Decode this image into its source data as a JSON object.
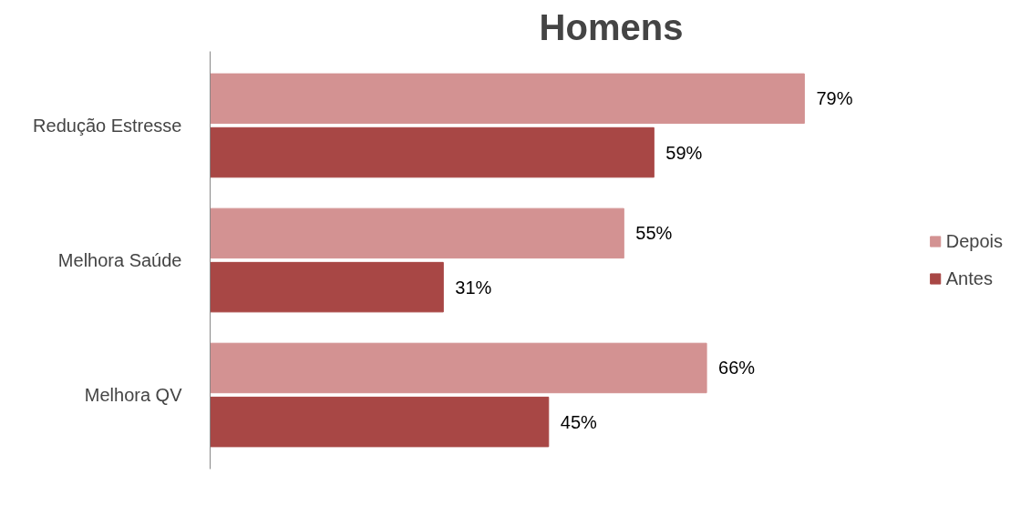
{
  "chart_data": {
    "type": "bar",
    "orientation": "horizontal",
    "title": "Homens",
    "categories": [
      "Redução Estresse",
      "Melhora Saúde",
      "Melhora QV"
    ],
    "series": [
      {
        "name": "Depois",
        "color": "#d39292",
        "values": [
          79,
          55,
          66
        ],
        "value_labels": [
          "79%",
          "55%",
          "66%"
        ]
      },
      {
        "name": "Antes",
        "color": "#a84745",
        "values": [
          59,
          31,
          45
        ],
        "value_labels": [
          "59%",
          "31%",
          "45%"
        ]
      }
    ],
    "legend": "right",
    "grid": false,
    "tick_labels": "y"
  }
}
